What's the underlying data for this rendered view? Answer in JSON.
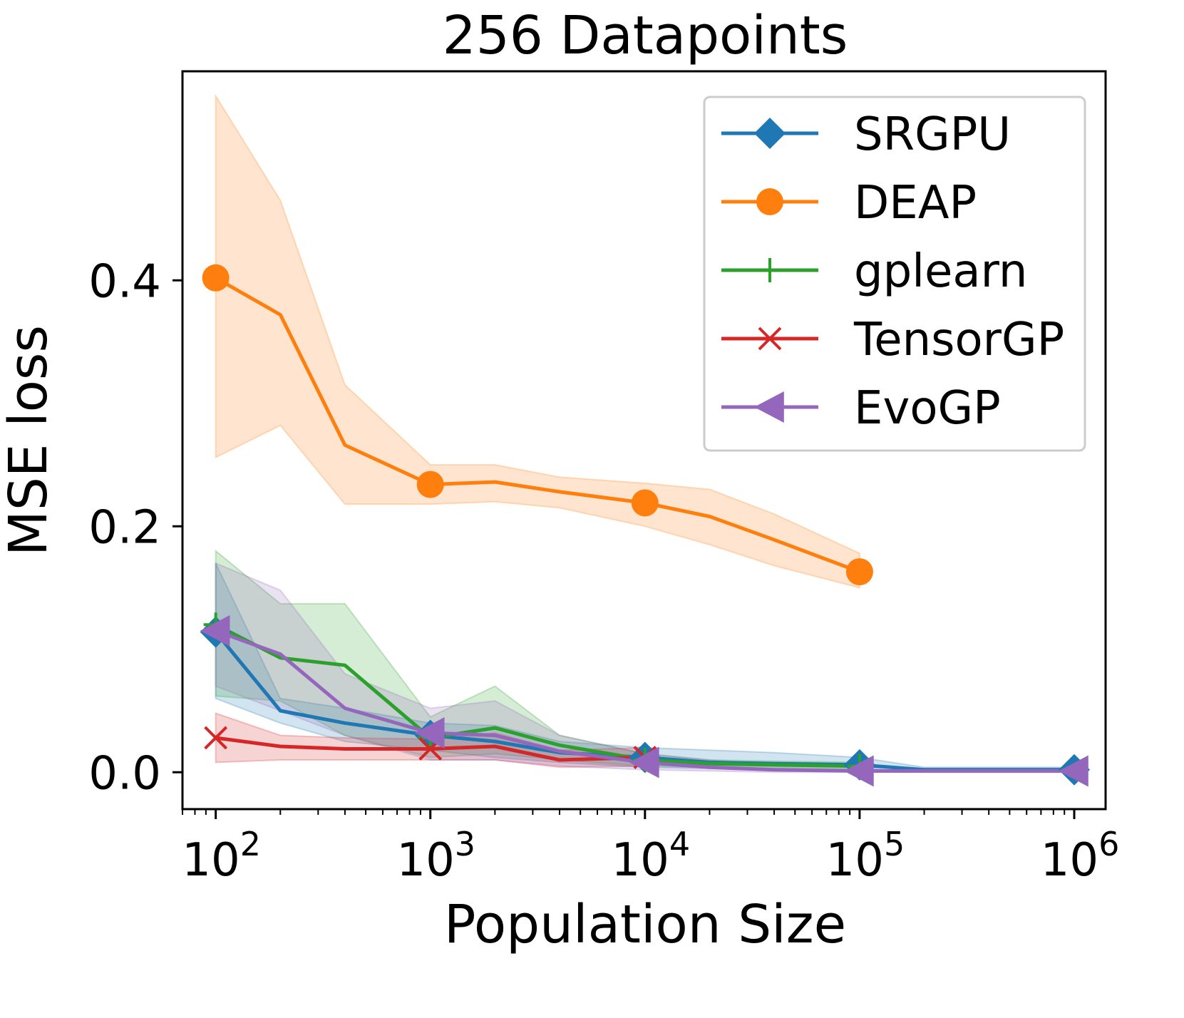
{
  "chart_data": {
    "type": "line",
    "title": "256 Datapoints",
    "xlabel": "Population Size",
    "ylabel": "MSE loss",
    "xscale": "log",
    "xlim": [
      70,
      1400000
    ],
    "ylim": [
      -0.03,
      0.57
    ],
    "x_ticks": [
      {
        "value": 100,
        "base": "10",
        "exp": "2"
      },
      {
        "value": 1000,
        "base": "10",
        "exp": "3"
      },
      {
        "value": 10000,
        "base": "10",
        "exp": "4"
      },
      {
        "value": 100000,
        "base": "10",
        "exp": "5"
      },
      {
        "value": 1000000,
        "base": "10",
        "exp": "6"
      }
    ],
    "y_ticks": [
      {
        "value": 0.0,
        "label": "0.0"
      },
      {
        "value": 0.2,
        "label": "0.2"
      },
      {
        "value": 0.4,
        "label": "0.4"
      }
    ],
    "legend_position": "top-right",
    "series": [
      {
        "name": "SRGPU",
        "color": "#1f77b4",
        "marker": "diamond",
        "x": [
          100,
          200,
          400,
          1000,
          2000,
          4000,
          10000,
          20000,
          40000,
          100000,
          200000,
          1000000
        ],
        "y": [
          0.114,
          0.05,
          0.04,
          0.03,
          0.025,
          0.016,
          0.012,
          0.008,
          0.007,
          0.006,
          0.002,
          0.002
        ],
        "lower": [
          0.06,
          0.04,
          0.025,
          0.018,
          0.012,
          0.008,
          0.004,
          0.003,
          0.002,
          0.002,
          0.0,
          0.0
        ],
        "upper": [
          0.17,
          0.06,
          0.052,
          0.04,
          0.038,
          0.025,
          0.02,
          0.018,
          0.016,
          0.012,
          0.004,
          0.004
        ],
        "markers_at": [
          100,
          1000,
          10000,
          100000,
          1000000
        ]
      },
      {
        "name": "DEAP",
        "color": "#ff7f0e",
        "marker": "circle",
        "x": [
          100,
          200,
          400,
          1000,
          2000,
          4000,
          10000,
          20000,
          40000,
          100000
        ],
        "y": [
          0.402,
          0.372,
          0.266,
          0.234,
          0.236,
          0.228,
          0.219,
          0.208,
          0.189,
          0.163
        ],
        "lower": [
          0.256,
          0.282,
          0.218,
          0.218,
          0.22,
          0.215,
          0.2,
          0.185,
          0.168,
          0.15
        ],
        "upper": [
          0.55,
          0.465,
          0.315,
          0.25,
          0.25,
          0.24,
          0.235,
          0.23,
          0.21,
          0.178
        ],
        "markers_at": [
          100,
          1000,
          10000,
          100000
        ]
      },
      {
        "name": "gplearn",
        "color": "#2ca02c",
        "marker": "plus",
        "x": [
          100,
          200,
          400,
          1000,
          2000,
          4000,
          10000,
          20000,
          40000,
          100000
        ],
        "y": [
          0.12,
          0.093,
          0.087,
          0.028,
          0.036,
          0.022,
          0.01,
          0.007,
          0.006,
          0.005
        ],
        "lower": [
          0.062,
          0.058,
          0.03,
          0.012,
          0.015,
          0.01,
          0.005,
          0.004,
          0.003,
          0.002
        ],
        "upper": [
          0.18,
          0.137,
          0.137,
          0.045,
          0.07,
          0.03,
          0.015,
          0.01,
          0.009,
          0.008
        ],
        "markers_at": [
          100,
          1000,
          10000,
          100000
        ]
      },
      {
        "name": "TensorGP",
        "color": "#d62728",
        "marker": "x",
        "x": [
          100,
          200,
          400,
          1000,
          2000,
          4000,
          10000
        ],
        "y": [
          0.028,
          0.021,
          0.019,
          0.019,
          0.021,
          0.01,
          0.012
        ],
        "lower": [
          0.008,
          0.01,
          0.01,
          0.01,
          0.01,
          0.004,
          0.005
        ],
        "upper": [
          0.048,
          0.03,
          0.028,
          0.027,
          0.032,
          0.018,
          0.02
        ],
        "markers_at": [
          100,
          1000,
          10000
        ]
      },
      {
        "name": "EvoGP",
        "color": "#9467bd",
        "marker": "triangle-left",
        "x": [
          100,
          200,
          400,
          1000,
          2000,
          4000,
          10000,
          20000,
          40000,
          100000,
          200000,
          1000000
        ],
        "y": [
          0.115,
          0.096,
          0.052,
          0.032,
          0.03,
          0.017,
          0.008,
          0.004,
          0.002,
          0.001,
          0.001,
          0.001
        ],
        "lower": [
          0.07,
          0.05,
          0.03,
          0.01,
          0.01,
          0.005,
          0.002,
          0.001,
          0.0,
          0.0,
          0.0,
          0.0
        ],
        "upper": [
          0.17,
          0.148,
          0.08,
          0.052,
          0.058,
          0.03,
          0.015,
          0.01,
          0.006,
          0.004,
          0.003,
          0.003
        ],
        "markers_at": [
          100,
          1000,
          10000,
          100000,
          1000000
        ]
      }
    ]
  }
}
